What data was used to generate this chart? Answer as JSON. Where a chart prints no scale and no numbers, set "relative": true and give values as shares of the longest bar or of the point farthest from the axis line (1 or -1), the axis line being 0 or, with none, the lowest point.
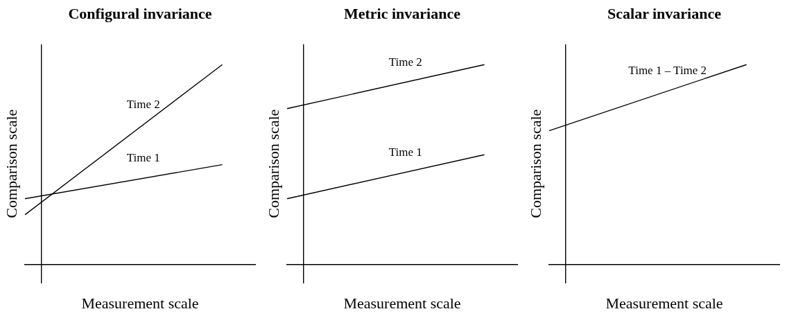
{
  "chart_data": [
    {
      "type": "line",
      "title": "Configural invariance",
      "xlabel": "Measurement scale",
      "ylabel": "Comparison scale",
      "relative": true,
      "categories": [
        null,
        null,
        null,
        null,
        null,
        null,
        null,
        null,
        null,
        null,
        null,
        null,
        null,
        null,
        null
      ],
      "series": [
        {
          "name": "Time 2",
          "color": "#000000",
          "values": [
            0.25,
            null,
            null,
            null,
            null,
            null,
            null,
            null,
            null,
            null,
            null,
            null,
            1,
            null,
            null
          ]
        },
        {
          "name": "Time 1",
          "color": "#000000",
          "values": [
            0.33,
            null,
            null,
            null,
            null,
            null,
            null,
            null,
            null,
            null,
            null,
            null,
            0.5,
            null,
            null
          ]
        }
      ],
      "grid": false,
      "legend": false,
      "marker": "none",
      "line_style": "solid"
    },
    {
      "type": "line",
      "title": "Metric invariance",
      "xlabel": "Measurement scale",
      "ylabel": "Comparison scale",
      "relative": true,
      "categories": [
        null,
        null,
        null,
        null,
        null,
        null,
        null,
        null,
        null,
        null,
        null,
        null,
        null,
        null,
        null
      ],
      "series": [
        {
          "name": "Time 2",
          "color": "#000000",
          "values": [
            0.78,
            null,
            null,
            null,
            null,
            null,
            null,
            null,
            null,
            null,
            null,
            null,
            1,
            null,
            null
          ]
        },
        {
          "name": "Time 1",
          "color": "#000000",
          "values": [
            0.33,
            null,
            null,
            null,
            null,
            null,
            null,
            null,
            null,
            null,
            null,
            null,
            0.55,
            null,
            null
          ]
        }
      ],
      "grid": false,
      "legend": false,
      "marker": "none",
      "line_style": "solid"
    },
    {
      "type": "line",
      "title": "Scalar invariance",
      "xlabel": "Measurement scale",
      "ylabel": "Comparison scale",
      "relative": true,
      "categories": [
        null,
        null,
        null,
        null,
        null,
        null,
        null,
        null,
        null,
        null,
        null,
        null,
        null,
        null,
        null
      ],
      "series": [
        {
          "name": "Time 1 – Time 2",
          "color": "#000000",
          "values": [
            0.67,
            null,
            null,
            null,
            null,
            null,
            null,
            null,
            null,
            null,
            null,
            null,
            1,
            null,
            null
          ]
        }
      ],
      "grid": false,
      "legend": false,
      "marker": "none",
      "line_style": "solid"
    }
  ]
}
